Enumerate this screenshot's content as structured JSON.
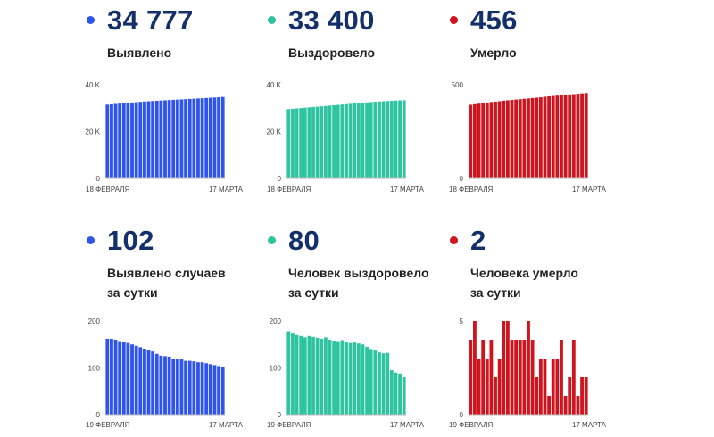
{
  "colors": {
    "confirmed": "#2f54eb",
    "recovered": "#2ec4a0",
    "deaths": "#d0141d"
  },
  "cards": [
    {
      "key": "confirmed_total",
      "color": "#2f54eb",
      "value": "34 777",
      "label": [
        "Выявлено"
      ]
    },
    {
      "key": "recovered_total",
      "color": "#2ec4a0",
      "value": "33 400",
      "label": [
        "Выздоровело"
      ]
    },
    {
      "key": "deaths_total",
      "color": "#d0141d",
      "value": "456",
      "label": [
        "Умерло"
      ]
    },
    {
      "key": "confirmed_daily",
      "color": "#2f54eb",
      "value": "102",
      "label": [
        "Выявлено случаев",
        "за сутки"
      ]
    },
    {
      "key": "recovered_daily",
      "color": "#2ec4a0",
      "value": "80",
      "label": [
        "Человек выздоровело",
        "за сутки"
      ]
    },
    {
      "key": "deaths_daily",
      "color": "#d0141d",
      "value": "2",
      "label": [
        "Человека умерло",
        "за сутки"
      ]
    }
  ],
  "chart_data": [
    {
      "type": "bar",
      "title": "",
      "xlabel": "",
      "ylabel": "",
      "color": "#2f54eb",
      "ylim": [
        0,
        40000
      ],
      "yticks": [
        {
          "v": 0,
          "t": "0"
        },
        {
          "v": 20000,
          "t": "20 K"
        },
        {
          "v": 40000,
          "t": "40 K"
        }
      ],
      "xticks": [
        "18 ФЕВРАЛЯ",
        "17 МАРТА"
      ],
      "values": [
        31500,
        31650,
        31800,
        31950,
        32100,
        32250,
        32400,
        32550,
        32700,
        32850,
        32950,
        33050,
        33150,
        33250,
        33350,
        33450,
        33550,
        33650,
        33750,
        33850,
        33950,
        34050,
        34150,
        34250,
        34350,
        34450,
        34550,
        34650,
        34777
      ]
    },
    {
      "type": "bar",
      "title": "",
      "xlabel": "",
      "ylabel": "",
      "color": "#2ec4a0",
      "ylim": [
        0,
        40000
      ],
      "yticks": [
        {
          "v": 0,
          "t": "0"
        },
        {
          "v": 20000,
          "t": "20 K"
        },
        {
          "v": 40000,
          "t": "40 K"
        }
      ],
      "xticks": [
        "18 ФЕВРАЛЯ",
        "17 МАРТА"
      ],
      "values": [
        29600,
        29750,
        29900,
        30050,
        30200,
        30350,
        30500,
        30650,
        30800,
        30950,
        31100,
        31250,
        31400,
        31550,
        31700,
        31850,
        32000,
        32150,
        32300,
        32450,
        32600,
        32750,
        32850,
        32950,
        33050,
        33150,
        33250,
        33320,
        33400
      ]
    },
    {
      "type": "bar",
      "title": "",
      "xlabel": "",
      "ylabel": "",
      "color": "#d0141d",
      "ylim": [
        0,
        500
      ],
      "yticks": [
        {
          "v": 0,
          "t": "0"
        },
        {
          "v": 500,
          "t": "500"
        }
      ],
      "xticks": [
        "18 ФЕВРАЛЯ",
        "17 МАРТА"
      ],
      "values": [
        393,
        396,
        399,
        402,
        405,
        408,
        410,
        412,
        415,
        417,
        419,
        421,
        423,
        425,
        427,
        429,
        431,
        433,
        436,
        438,
        440,
        442,
        444,
        446,
        448,
        450,
        452,
        454,
        456
      ]
    },
    {
      "type": "bar",
      "title": "",
      "xlabel": "",
      "ylabel": "",
      "color": "#2f54eb",
      "ylim": [
        0,
        200
      ],
      "yticks": [
        {
          "v": 0,
          "t": "0"
        },
        {
          "v": 100,
          "t": "100"
        },
        {
          "v": 200,
          "t": "200"
        }
      ],
      "xticks": [
        "19 ФЕВРАЛЯ",
        "17 МАРТА"
      ],
      "values": [
        162,
        162,
        160,
        157,
        155,
        153,
        150,
        147,
        144,
        141,
        138,
        135,
        130,
        126,
        125,
        124,
        120,
        119,
        118,
        115,
        115,
        114,
        112,
        112,
        110,
        108,
        106,
        104,
        102
      ]
    },
    {
      "type": "bar",
      "title": "",
      "xlabel": "",
      "ylabel": "",
      "color": "#2ec4a0",
      "ylim": [
        0,
        200
      ],
      "yticks": [
        {
          "v": 0,
          "t": "0"
        },
        {
          "v": 100,
          "t": "100"
        },
        {
          "v": 200,
          "t": "200"
        }
      ],
      "xticks": [
        "19 ФЕВРАЛЯ",
        "17 МАРТА"
      ],
      "values": [
        178,
        175,
        170,
        168,
        165,
        168,
        166,
        164,
        162,
        165,
        160,
        158,
        157,
        159,
        155,
        153,
        154,
        152,
        150,
        145,
        140,
        138,
        133,
        131,
        132,
        95,
        90,
        88,
        80
      ]
    },
    {
      "type": "bar",
      "title": "",
      "xlabel": "",
      "ylabel": "",
      "color": "#d0141d",
      "ylim": [
        0,
        5
      ],
      "yticks": [
        {
          "v": 0,
          "t": "0"
        },
        {
          "v": 5,
          "t": "5"
        }
      ],
      "xticks": [
        "19 ФЕВРАЛЯ",
        "17 МАРТА"
      ],
      "values": [
        4,
        5,
        3,
        4,
        3,
        4,
        2,
        3,
        5,
        5,
        4,
        4,
        4,
        4,
        5,
        4,
        2,
        3,
        3,
        1,
        3,
        3,
        4,
        1,
        2,
        4,
        1,
        2,
        2
      ]
    }
  ]
}
